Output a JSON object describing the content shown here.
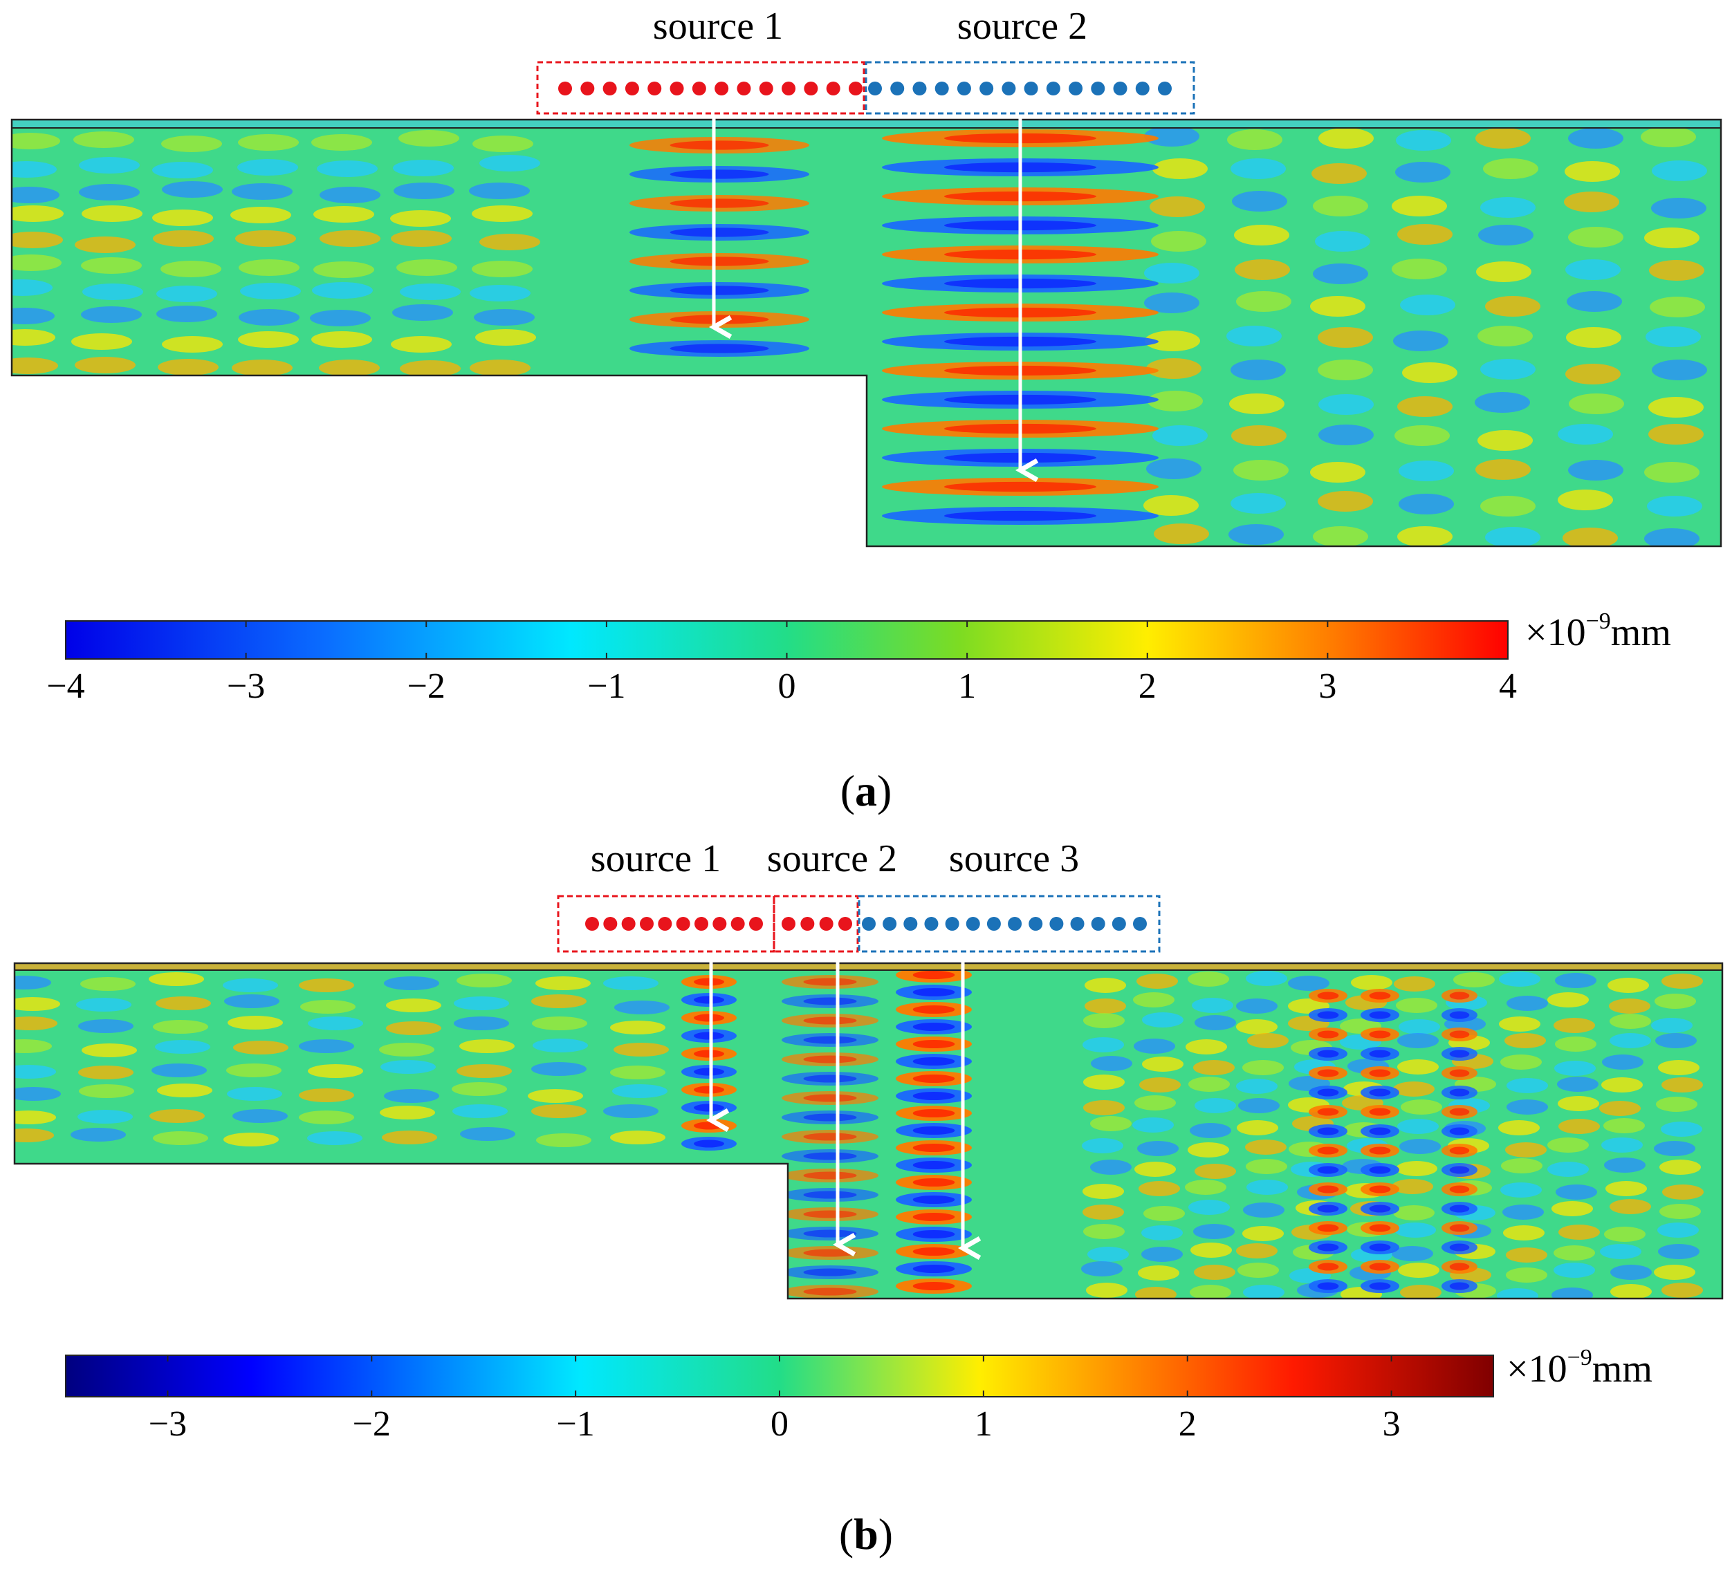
{
  "figure_a": {
    "sources": [
      "source 1",
      "source 2"
    ],
    "source_dot_counts": [
      14,
      14
    ],
    "source_colors": [
      "#e8141c",
      "#1b72b8"
    ],
    "colorbar": {
      "ticks": [
        "−4",
        "−3",
        "−2",
        "−1",
        "0",
        "1",
        "2",
        "3",
        "4"
      ],
      "range": [
        -4,
        4
      ],
      "unit_prefix": "×10",
      "unit_exp": "−9",
      "unit_suffix": "mm"
    },
    "caption_open": "(",
    "caption_letter": "a",
    "caption_close": ")"
  },
  "figure_b": {
    "sources": [
      "source 1",
      "source 2",
      "source 3"
    ],
    "source_dot_counts": [
      10,
      4,
      14
    ],
    "source_colors": [
      "#e8141c",
      "#e8141c",
      "#1b72b8"
    ],
    "colorbar": {
      "ticks": [
        "−3",
        "−2",
        "−1",
        "0",
        "1",
        "2",
        "3"
      ],
      "range": [
        -3.5,
        3.5
      ],
      "unit_prefix": "×10",
      "unit_exp": "−9",
      "unit_suffix": "mm"
    },
    "caption_open": "(",
    "caption_letter": "b",
    "caption_close": ")"
  }
}
